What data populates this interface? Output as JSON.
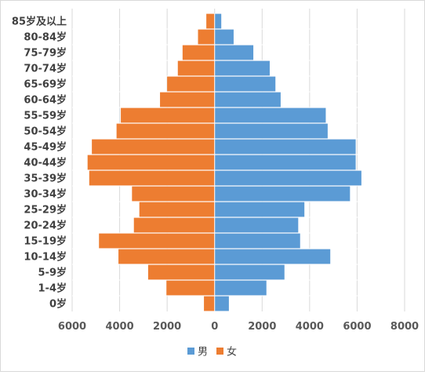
{
  "chart_data": {
    "type": "bar",
    "orientation": "horizontal",
    "layout": "population-pyramid",
    "categories": [
      "85岁及以上",
      "80-84岁",
      "75-79岁",
      "70-74岁",
      "65-69岁",
      "60-64岁",
      "55-59岁",
      "50-54岁",
      "45-49岁",
      "40-44岁",
      "35-39岁",
      "30-34岁",
      "25-29岁",
      "20-24岁",
      "15-19岁",
      "10-14岁",
      "5-9岁",
      "1-4岁",
      "0岁"
    ],
    "series": [
      {
        "name": "男",
        "color": "#5b9bd5",
        "values": [
          280,
          800,
          1630,
          2320,
          2560,
          2780,
          4680,
          4760,
          5940,
          5940,
          6180,
          5700,
          3780,
          3520,
          3600,
          4870,
          2940,
          2180,
          600
        ]
      },
      {
        "name": "女",
        "color": "#ed7d31",
        "values": [
          350,
          700,
          1350,
          1550,
          2000,
          2300,
          3950,
          4130,
          5170,
          5350,
          5280,
          3480,
          3170,
          3400,
          4870,
          4050,
          2800,
          2030,
          450
        ]
      }
    ],
    "xlim": [
      -6000,
      8000
    ],
    "xticks": [
      -6000,
      -4000,
      -2000,
      0,
      2000,
      4000,
      6000,
      8000
    ],
    "xtick_labels": [
      "6000",
      "4000",
      "2000",
      "0",
      "2000",
      "4000",
      "6000",
      "8000"
    ],
    "grid": true,
    "legend": "bottom"
  }
}
